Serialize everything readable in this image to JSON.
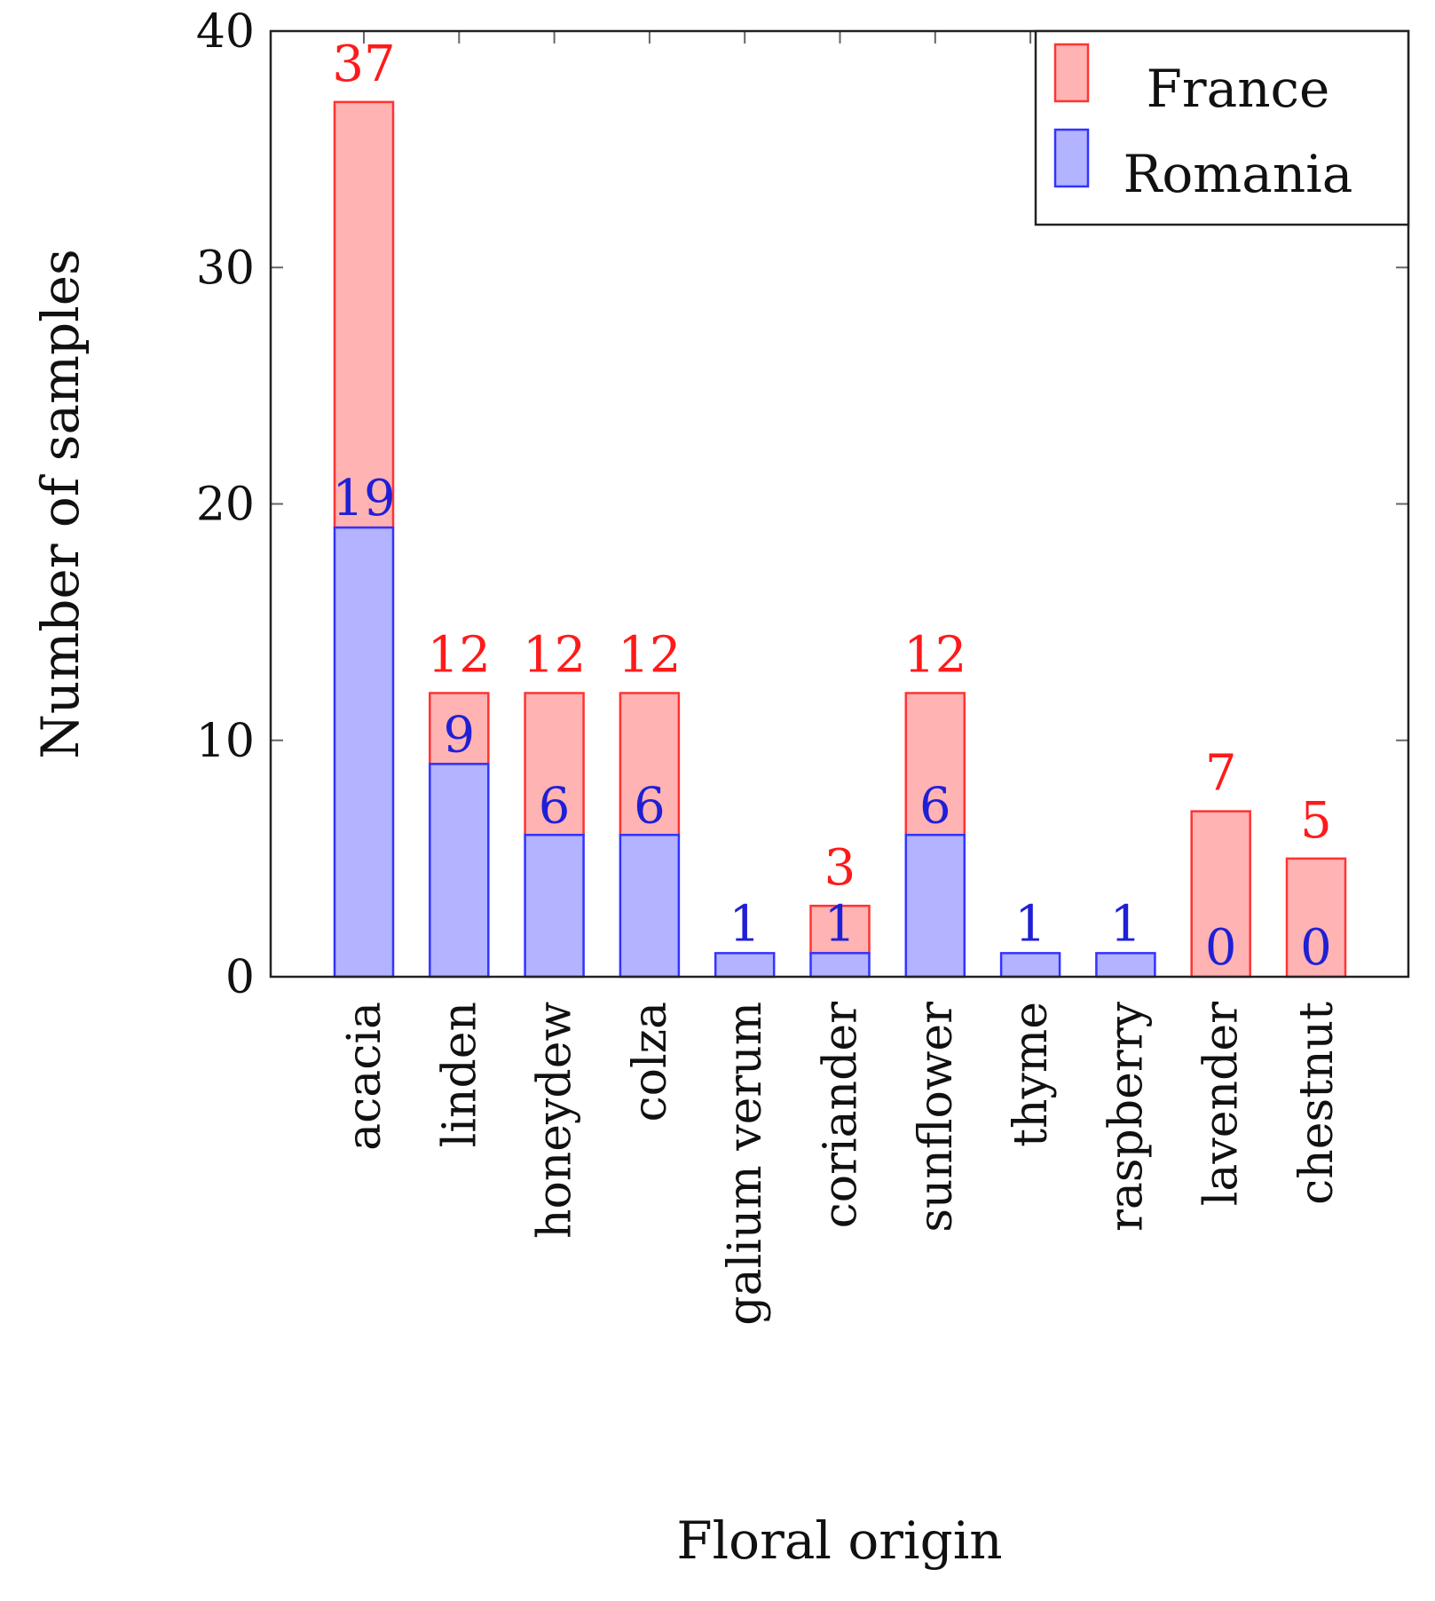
{
  "chart_data": {
    "type": "bar",
    "stacked": true,
    "xlabel": "Floral origin",
    "ylabel": "Number of samples",
    "ylim": [
      0,
      40
    ],
    "yticks": [
      0,
      10,
      20,
      30,
      40
    ],
    "categories": [
      "acacia",
      "linden",
      "honeydew",
      "colza",
      "galium verum",
      "coriander",
      "sunflower",
      "thyme",
      "raspberry",
      "lavender",
      "chestnut"
    ],
    "series": [
      {
        "name": "Romania",
        "values": [
          19,
          9,
          6,
          6,
          1,
          1,
          6,
          1,
          1,
          0,
          0
        ],
        "fill": "#b3b3ff",
        "stroke": "#3333ff",
        "label_color": "#1f1fd6"
      },
      {
        "name": "France",
        "values": [
          18,
          3,
          6,
          6,
          0,
          2,
          6,
          0,
          0,
          7,
          5
        ],
        "fill": "#ffb3b3",
        "stroke": "#ff3333",
        "label_color": "#ff1a1a"
      }
    ],
    "total_labels": [
      "37",
      "12",
      "12",
      "12",
      "",
      "3",
      "12",
      "",
      "",
      "7",
      "5"
    ],
    "romania_labels": [
      "19",
      "9",
      "6",
      "6",
      "1",
      "1",
      "6",
      "1",
      "1",
      "0",
      "0"
    ],
    "legend": {
      "placement": "top-right",
      "entries": [
        "France",
        "Romania"
      ]
    },
    "grid": false
  }
}
